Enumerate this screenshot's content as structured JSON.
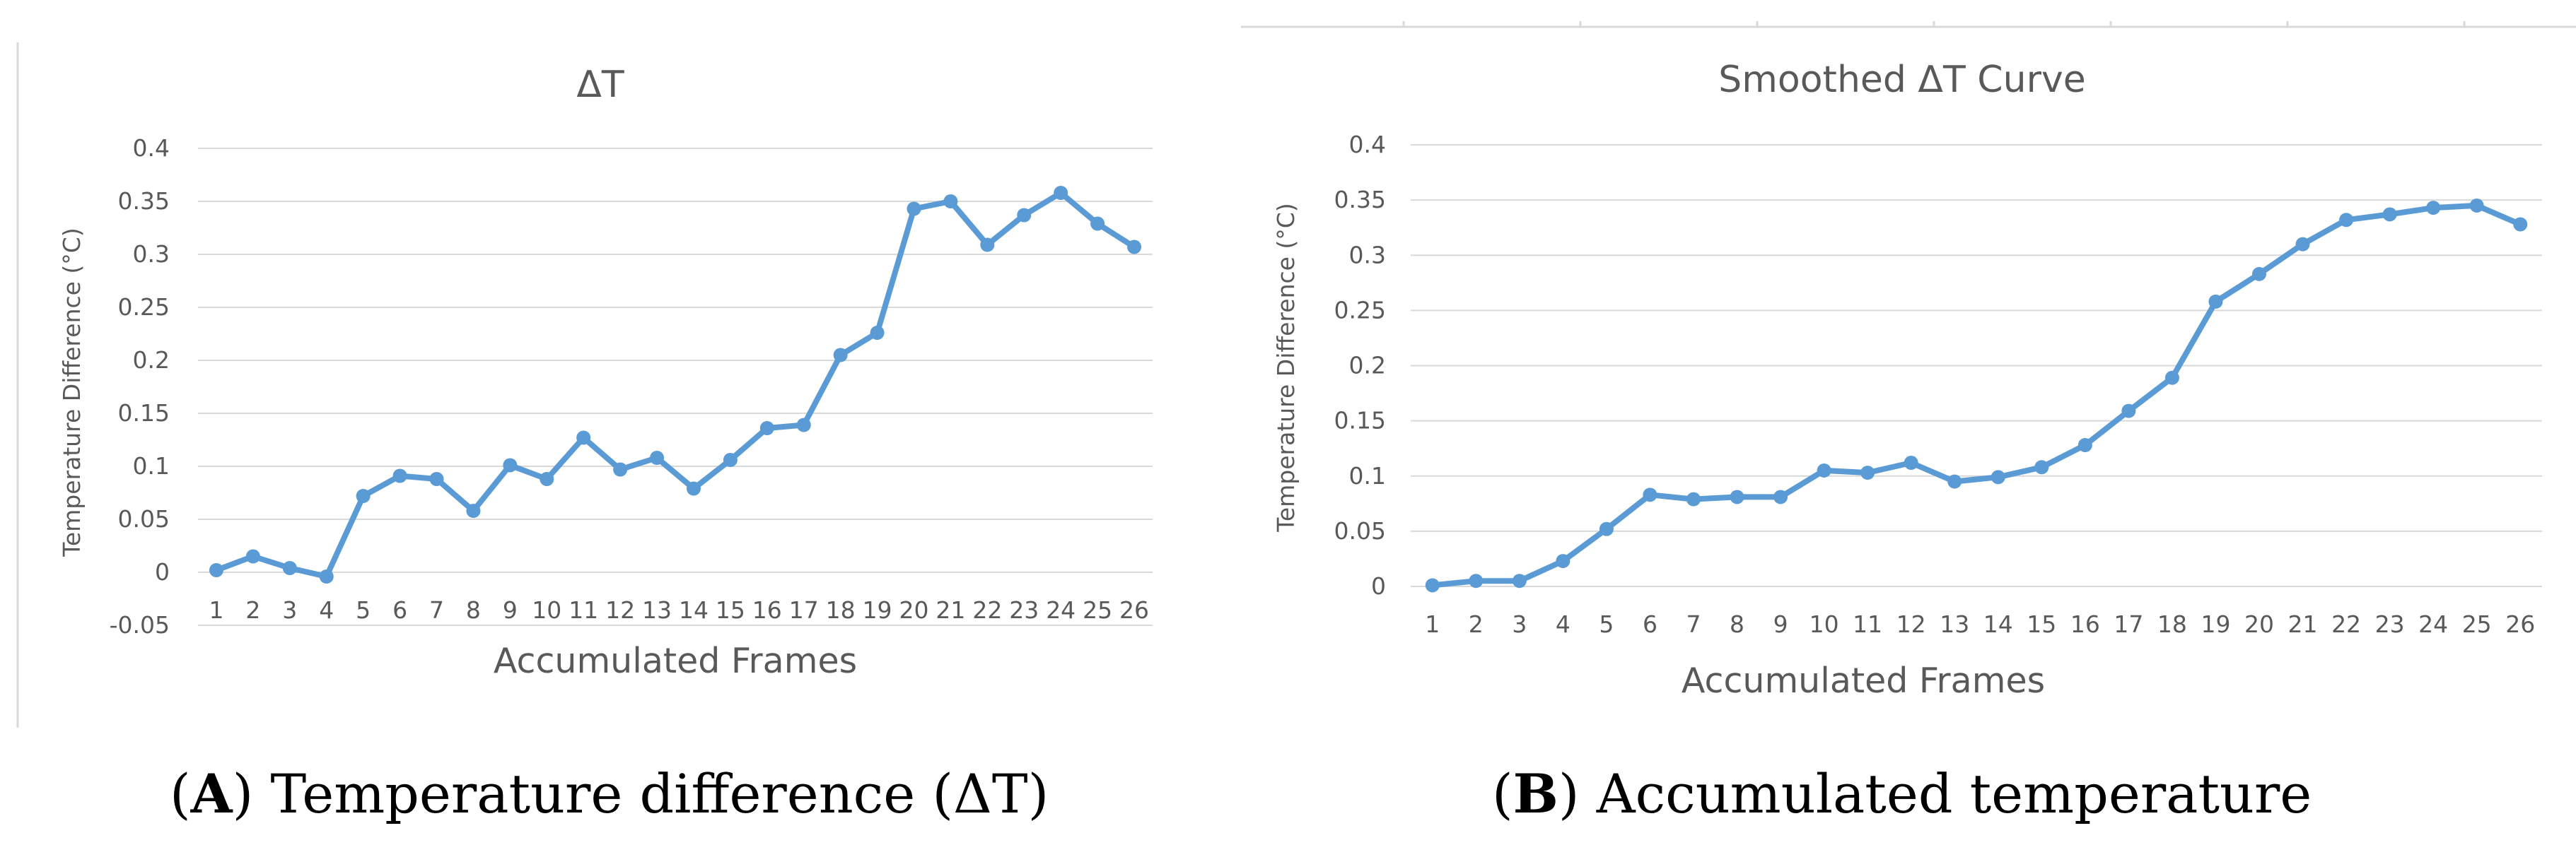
{
  "chart_data": [
    {
      "id": "A",
      "type": "line",
      "title": "ΔT",
      "xlabel": "Accumulated Frames",
      "ylabel": "Temperature Difference (°C)",
      "categories": [
        "1",
        "2",
        "3",
        "4",
        "5",
        "6",
        "7",
        "8",
        "9",
        "10",
        "11",
        "12",
        "13",
        "14",
        "15",
        "16",
        "17",
        "18",
        "19",
        "20",
        "21",
        "22",
        "23",
        "24",
        "25",
        "26"
      ],
      "ylim": [
        -0.05,
        0.4
      ],
      "yticks": [
        "-0.05",
        "0",
        "0.05",
        "0.1",
        "0.15",
        "0.2",
        "0.25",
        "0.3",
        "0.35",
        "0.4"
      ],
      "grid": true,
      "legend": "none",
      "color": "#5B9BD5",
      "series": [
        {
          "values": [
            0.002,
            0.015,
            0.004,
            -0.004,
            0.072,
            0.091,
            0.088,
            0.058,
            0.101,
            0.088,
            0.127,
            0.097,
            0.108,
            0.079,
            0.106,
            0.136,
            0.139,
            0.205,
            0.226,
            0.343,
            0.35,
            0.309,
            0.337,
            0.358,
            0.329,
            0.307
          ]
        }
      ]
    },
    {
      "id": "B",
      "type": "line",
      "title": "Smoothed ΔT Curve",
      "xlabel": "Accumulated Frames",
      "ylabel": "Temperature Difference (°C)",
      "categories": [
        "1",
        "2",
        "3",
        "4",
        "5",
        "6",
        "7",
        "8",
        "9",
        "10",
        "11",
        "12",
        "13",
        "14",
        "15",
        "16",
        "17",
        "18",
        "19",
        "20",
        "21",
        "22",
        "23",
        "24",
        "25",
        "26"
      ],
      "ylim": [
        0,
        0.4
      ],
      "yticks": [
        "0",
        "0.05",
        "0.1",
        "0.15",
        "0.2",
        "0.25",
        "0.3",
        "0.35",
        "0.4"
      ],
      "grid": true,
      "legend": "none",
      "color": "#5B9BD5",
      "series": [
        {
          "values": [
            0.001,
            0.005,
            0.005,
            0.023,
            0.052,
            0.083,
            0.079,
            0.081,
            0.081,
            0.105,
            0.103,
            0.112,
            0.095,
            0.099,
            0.108,
            0.128,
            0.159,
            0.189,
            0.258,
            0.283,
            0.31,
            0.332,
            0.337,
            0.343,
            0.345,
            0.328
          ]
        }
      ]
    }
  ],
  "captions": [
    {
      "letter": "A",
      "text": "Temperature difference (ΔT)"
    },
    {
      "letter": "B",
      "text": "Accumulated temperature"
    }
  ]
}
